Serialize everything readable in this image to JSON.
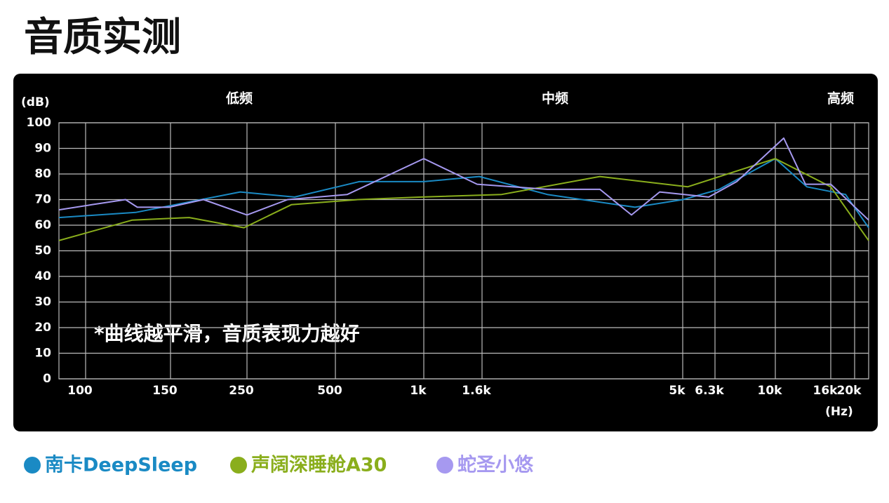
{
  "chart_data": {
    "type": "line",
    "title": "音质实测",
    "y_unit": "(dB)",
    "x_unit": "(Hz)",
    "bands": [
      "低频",
      "中频",
      "高频"
    ],
    "annotation": "*曲线越平滑，音质表现力越好",
    "xlim": [
      88,
      22800
    ],
    "ylim": [
      0,
      100
    ],
    "xticks": [
      100,
      150,
      250,
      500,
      {
        "value": 1000,
        "label": "1k"
      },
      {
        "value": 1600,
        "label": "1.6k"
      },
      {
        "value": 5000,
        "label": "5k"
      },
      {
        "value": 6300,
        "label": "6.3k"
      },
      {
        "value": 10000,
        "label": "10k"
      },
      {
        "value": 16000,
        "label": "16k"
      },
      {
        "value": 20000,
        "label": "20k"
      }
    ],
    "yticks": [
      0,
      10,
      20,
      30,
      40,
      50,
      60,
      70,
      80,
      90,
      100
    ],
    "grid": true,
    "series": [
      {
        "name": "南卡DeepSleep",
        "color": "#1a8ac4",
        "x": [
          88,
          127,
          239,
          363,
          603,
          1000,
          1564,
          2318,
          3814,
          5010,
          6508,
          10000,
          13070,
          18370,
          22800
        ],
        "values": [
          63,
          65,
          73,
          71,
          77,
          77,
          79,
          72,
          67,
          70,
          74,
          86,
          75,
          72,
          59
        ]
      },
      {
        "name": "声阔深睡舱A30",
        "color": "#8aae1c",
        "x": [
          88,
          125,
          170,
          245,
          354,
          596,
          979,
          1789,
          3125,
          5178,
          10000,
          16000,
          22800
        ],
        "values": [
          54,
          62,
          63,
          59,
          68,
          70,
          71,
          72,
          79,
          75,
          86,
          75,
          54
        ]
      },
      {
        "name": "蛇圣小悠",
        "color": "#a699f0",
        "x": [
          88,
          103,
          121,
          128,
          149,
          187,
          250,
          344,
          549,
          1000,
          1538,
          2318,
          3125,
          3738,
          4387,
          6022,
          7443,
          10740,
          12910,
          16000,
          22800
        ],
        "values": [
          66,
          68,
          70,
          67,
          67,
          70,
          64,
          70,
          72,
          86,
          76,
          74,
          74,
          64,
          73,
          71,
          77,
          94,
          76,
          76,
          62
        ]
      }
    ]
  }
}
